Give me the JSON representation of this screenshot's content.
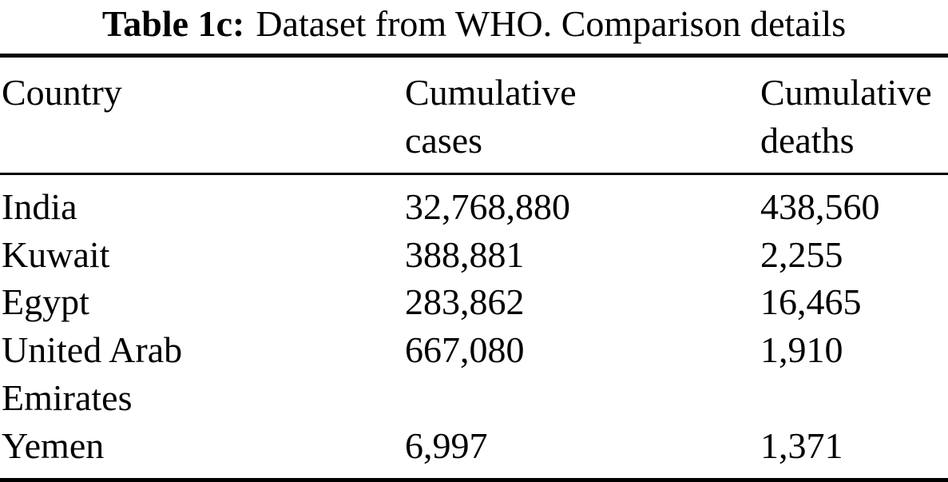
{
  "caption": {
    "label": "Table 1c:",
    "text": "Dataset from WHO. Comparison details"
  },
  "table": {
    "columns": [
      "Country",
      "Cumulative cases",
      "Cumulative deaths"
    ],
    "rows": [
      {
        "country": "India",
        "cases": "32,768,880",
        "deaths": "438,560"
      },
      {
        "country": "Kuwait",
        "cases": "388,881",
        "deaths": "2,255"
      },
      {
        "country": "Egypt",
        "cases": "283,862",
        "deaths": "16,465"
      },
      {
        "country": "United Arab Emirates",
        "cases": "667,080",
        "deaths": "1,910"
      },
      {
        "country": "Yemen",
        "cases": "6,997",
        "deaths": "1,371"
      }
    ]
  },
  "colors": {
    "text": "#000000",
    "background": "#ffffff",
    "rule": "#000000"
  }
}
